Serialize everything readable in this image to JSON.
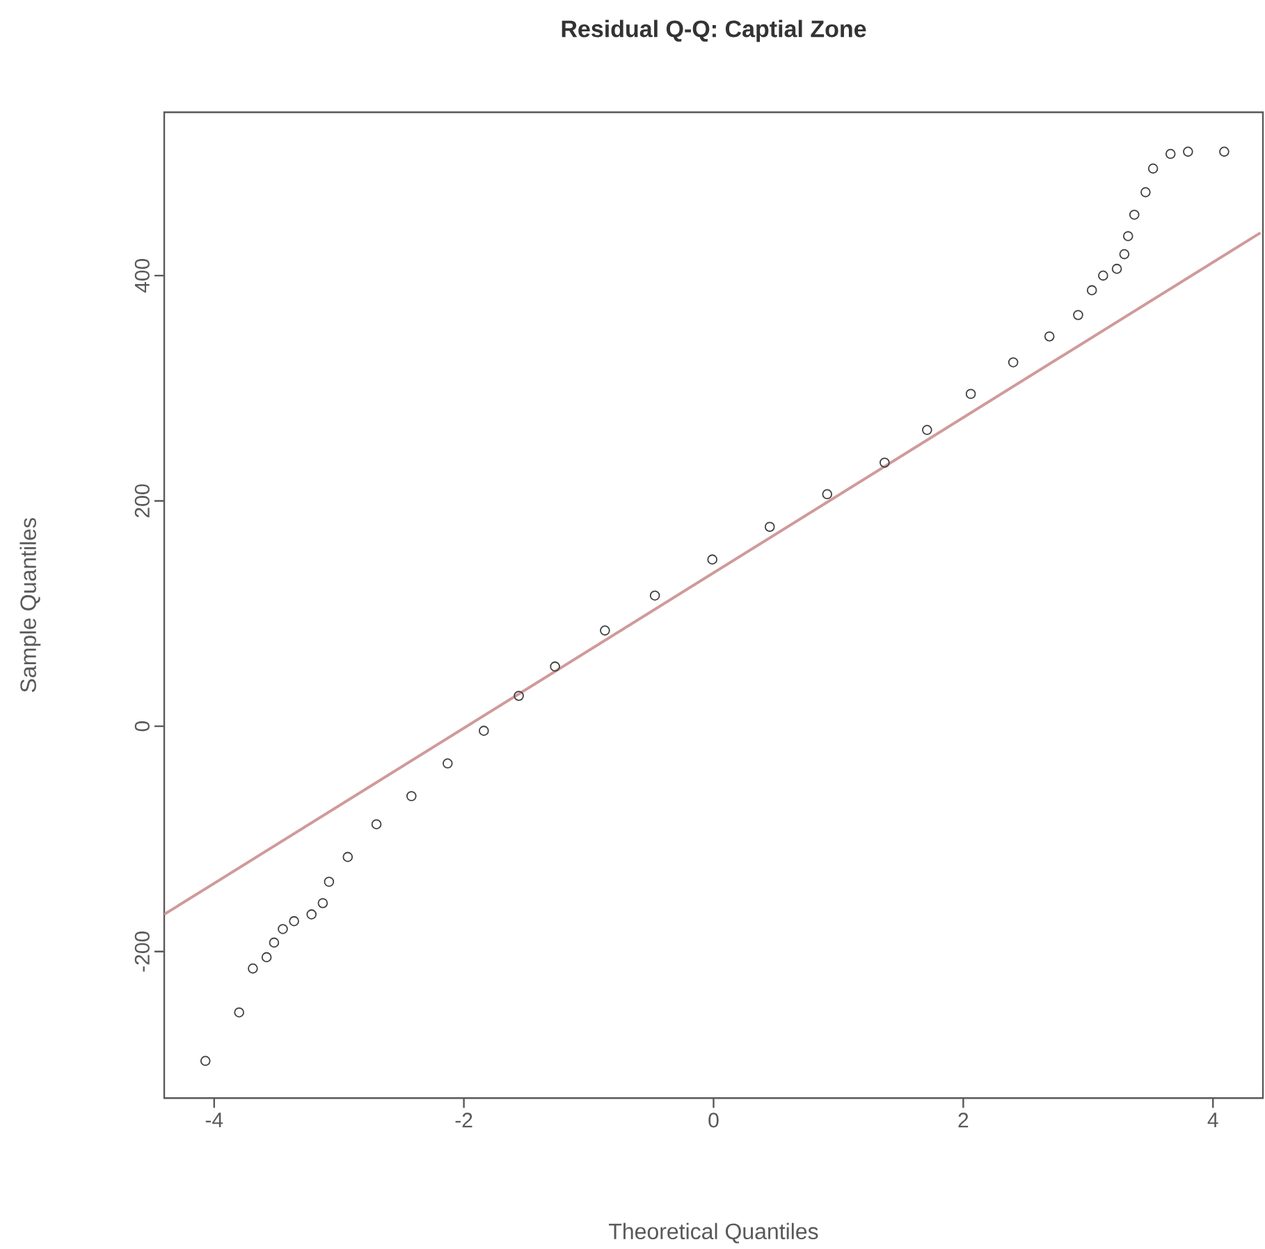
{
  "chart_data": {
    "type": "scatter",
    "title": "Residual Q-Q: Captial Zone",
    "xlabel": "Theoretical Quantiles",
    "ylabel": "Sample Quantiles",
    "xlim": [
      -4.4,
      4.4
    ],
    "ylim": [
      -330,
      545
    ],
    "xticks": [
      -4,
      -2,
      0,
      2,
      4
    ],
    "yticks": [
      -200,
      0,
      200,
      400
    ],
    "marker": "circle",
    "series": [
      {
        "color": "#404040",
        "x": [
          -4.07,
          -3.8,
          -3.69,
          -3.58,
          -3.52,
          -3.45,
          -3.36,
          -3.22,
          -3.13,
          -3.08,
          -2.93,
          -2.7,
          -2.42,
          -2.13,
          -1.84,
          -1.56,
          -1.27,
          -0.87,
          -0.47,
          -0.01,
          0.45,
          0.91,
          1.37,
          1.71,
          2.06,
          2.4,
          2.69,
          2.92,
          3.03,
          3.12,
          3.23,
          3.29,
          3.32,
          3.37,
          3.46,
          3.52,
          3.66,
          3.8,
          4.09
        ],
        "values": [
          -297,
          -254,
          -215,
          -205,
          -192,
          -180,
          -173,
          -167,
          -157,
          -138,
          -116,
          -87,
          -62,
          -33,
          -4,
          27,
          53,
          85,
          116,
          148,
          177,
          206,
          234,
          263,
          295,
          323,
          346,
          365,
          387,
          400,
          406,
          419,
          435,
          454,
          474,
          495,
          508,
          510,
          510
        ]
      },
      {
        "type": "line",
        "color": "#d09a9a",
        "marker": "none",
        "x": [
          -4.4,
          4.38
        ],
        "values": [
          -167,
          438
        ]
      }
    ]
  }
}
